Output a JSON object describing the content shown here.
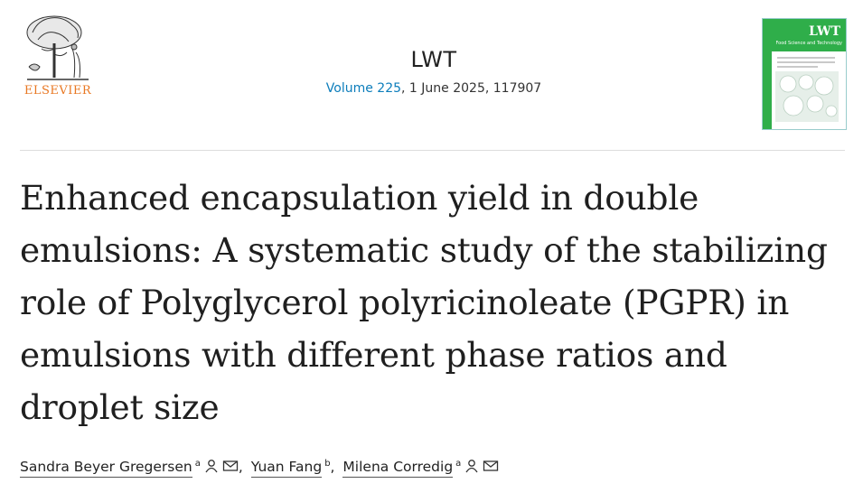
{
  "publisher": {
    "name": "ELSEVIER",
    "logo_icon": "elsevier-tree-logo"
  },
  "journal": {
    "title": "LWT",
    "volume_link": "Volume 225",
    "issue_rest": ", 1 June 2025, 117907",
    "cover": {
      "icon": "journal-cover-thumbnail",
      "title": "LWT",
      "subtitle": "Food Science and Technology"
    }
  },
  "article": {
    "title": "Enhanced encapsulation yield in double emulsions: A systematic study of the stabilizing role of Polyglycerol polyricinoleate (PGPR) in emulsions with different phase ratios and droplet size"
  },
  "authors": [
    {
      "name": "Sandra Beyer Gregersen",
      "aff": "a",
      "icons": [
        "person-icon",
        "mail-icon"
      ]
    },
    {
      "name": "Yuan Fang",
      "aff": "b",
      "icons": []
    },
    {
      "name": "Milena Corredig",
      "aff": "a",
      "icons": [
        "person-icon",
        "mail-icon"
      ]
    }
  ],
  "colors": {
    "publisher_orange": "#e87722",
    "link_blue": "#0c7dbb",
    "cover_green": "#2fae4a"
  }
}
